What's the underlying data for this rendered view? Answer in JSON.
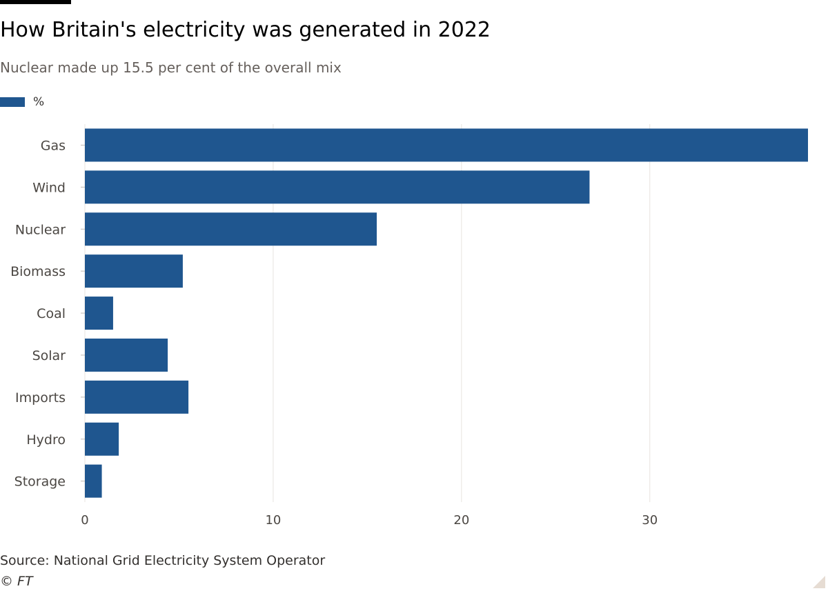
{
  "colors": {
    "bar": "#1f568f",
    "grid": "#e7e3df",
    "tick_text": "#4a4642"
  },
  "chart_data": {
    "type": "bar",
    "orientation": "horizontal",
    "title": "How Britain's electricity was generated in 2022",
    "subtitle": "Nuclear made up 15.5 per cent of the overall mix",
    "legend": {
      "label": "%",
      "placement": "top-left"
    },
    "categories": [
      "Gas",
      "Wind",
      "Nuclear",
      "Biomass",
      "Coal",
      "Solar",
      "Imports",
      "Hydro",
      "Storage"
    ],
    "values": [
      38.4,
      26.8,
      15.5,
      5.2,
      1.5,
      4.4,
      5.5,
      1.8,
      0.9
    ],
    "xlim": [
      0,
      38.4
    ],
    "xticks": [
      0,
      10,
      20,
      30
    ],
    "grid": "vertical",
    "source": "Source: National Grid Electricity System Operator",
    "credit": "© FT"
  }
}
